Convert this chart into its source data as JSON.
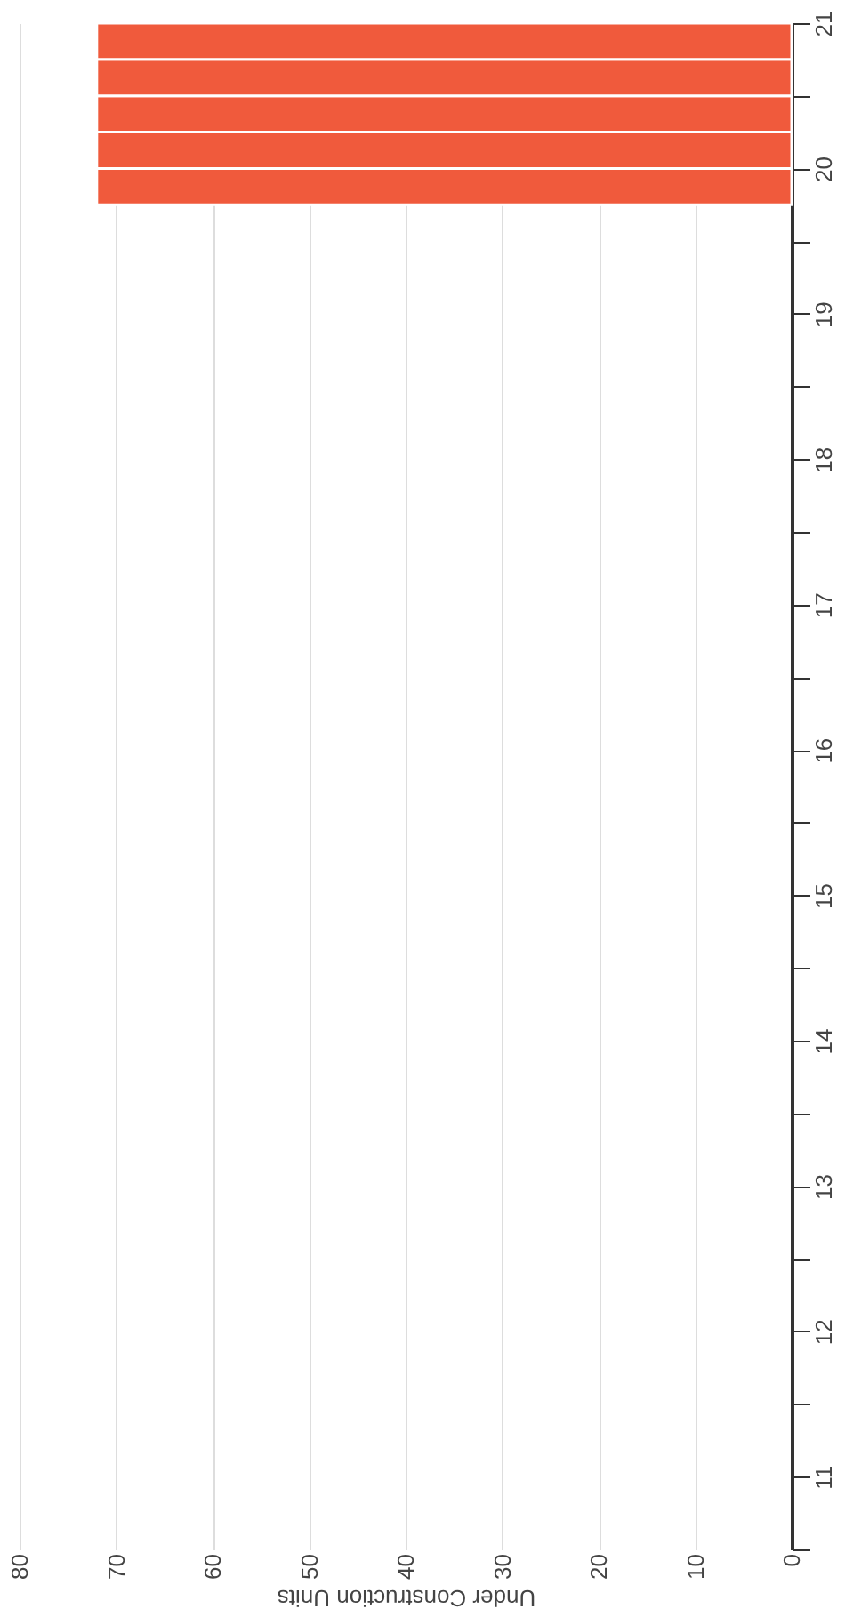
{
  "chart_data": {
    "type": "bar",
    "orientation": "horizontal",
    "xlabel": "Under Construction Units",
    "x": [
      20.375,
      20.625,
      20.875,
      21.125,
      21.375
    ],
    "values": [
      72,
      72,
      72,
      72,
      72
    ],
    "color": "#f05a3c",
    "xlim": [
      80,
      0
    ],
    "xticks": [
      0,
      10,
      20,
      30,
      40,
      50,
      60,
      70,
      80
    ],
    "ylim": [
      11,
      21.5
    ],
    "yticks": [
      {
        "value": 11,
        "label": null
      },
      {
        "value": 11.5,
        "label": "11"
      },
      {
        "value": 12,
        "label": null
      },
      {
        "value": 12.5,
        "label": "12"
      },
      {
        "value": 13,
        "label": null
      },
      {
        "value": 13.5,
        "label": "13"
      },
      {
        "value": 14,
        "label": null
      },
      {
        "value": 14.5,
        "label": "14"
      },
      {
        "value": 15,
        "label": null
      },
      {
        "value": 15.5,
        "label": "15"
      },
      {
        "value": 16,
        "label": null
      },
      {
        "value": 16.5,
        "label": "16"
      },
      {
        "value": 17,
        "label": null
      },
      {
        "value": 17.5,
        "label": "17"
      },
      {
        "value": 18,
        "label": null
      },
      {
        "value": 18.5,
        "label": "18"
      },
      {
        "value": 19,
        "label": null
      },
      {
        "value": 19.5,
        "label": "19"
      },
      {
        "value": 20,
        "label": null
      },
      {
        "value": 20.5,
        "label": "20"
      },
      {
        "value": 21,
        "label": null
      },
      {
        "value": 21.5,
        "label": "21"
      }
    ],
    "grid": "x"
  }
}
